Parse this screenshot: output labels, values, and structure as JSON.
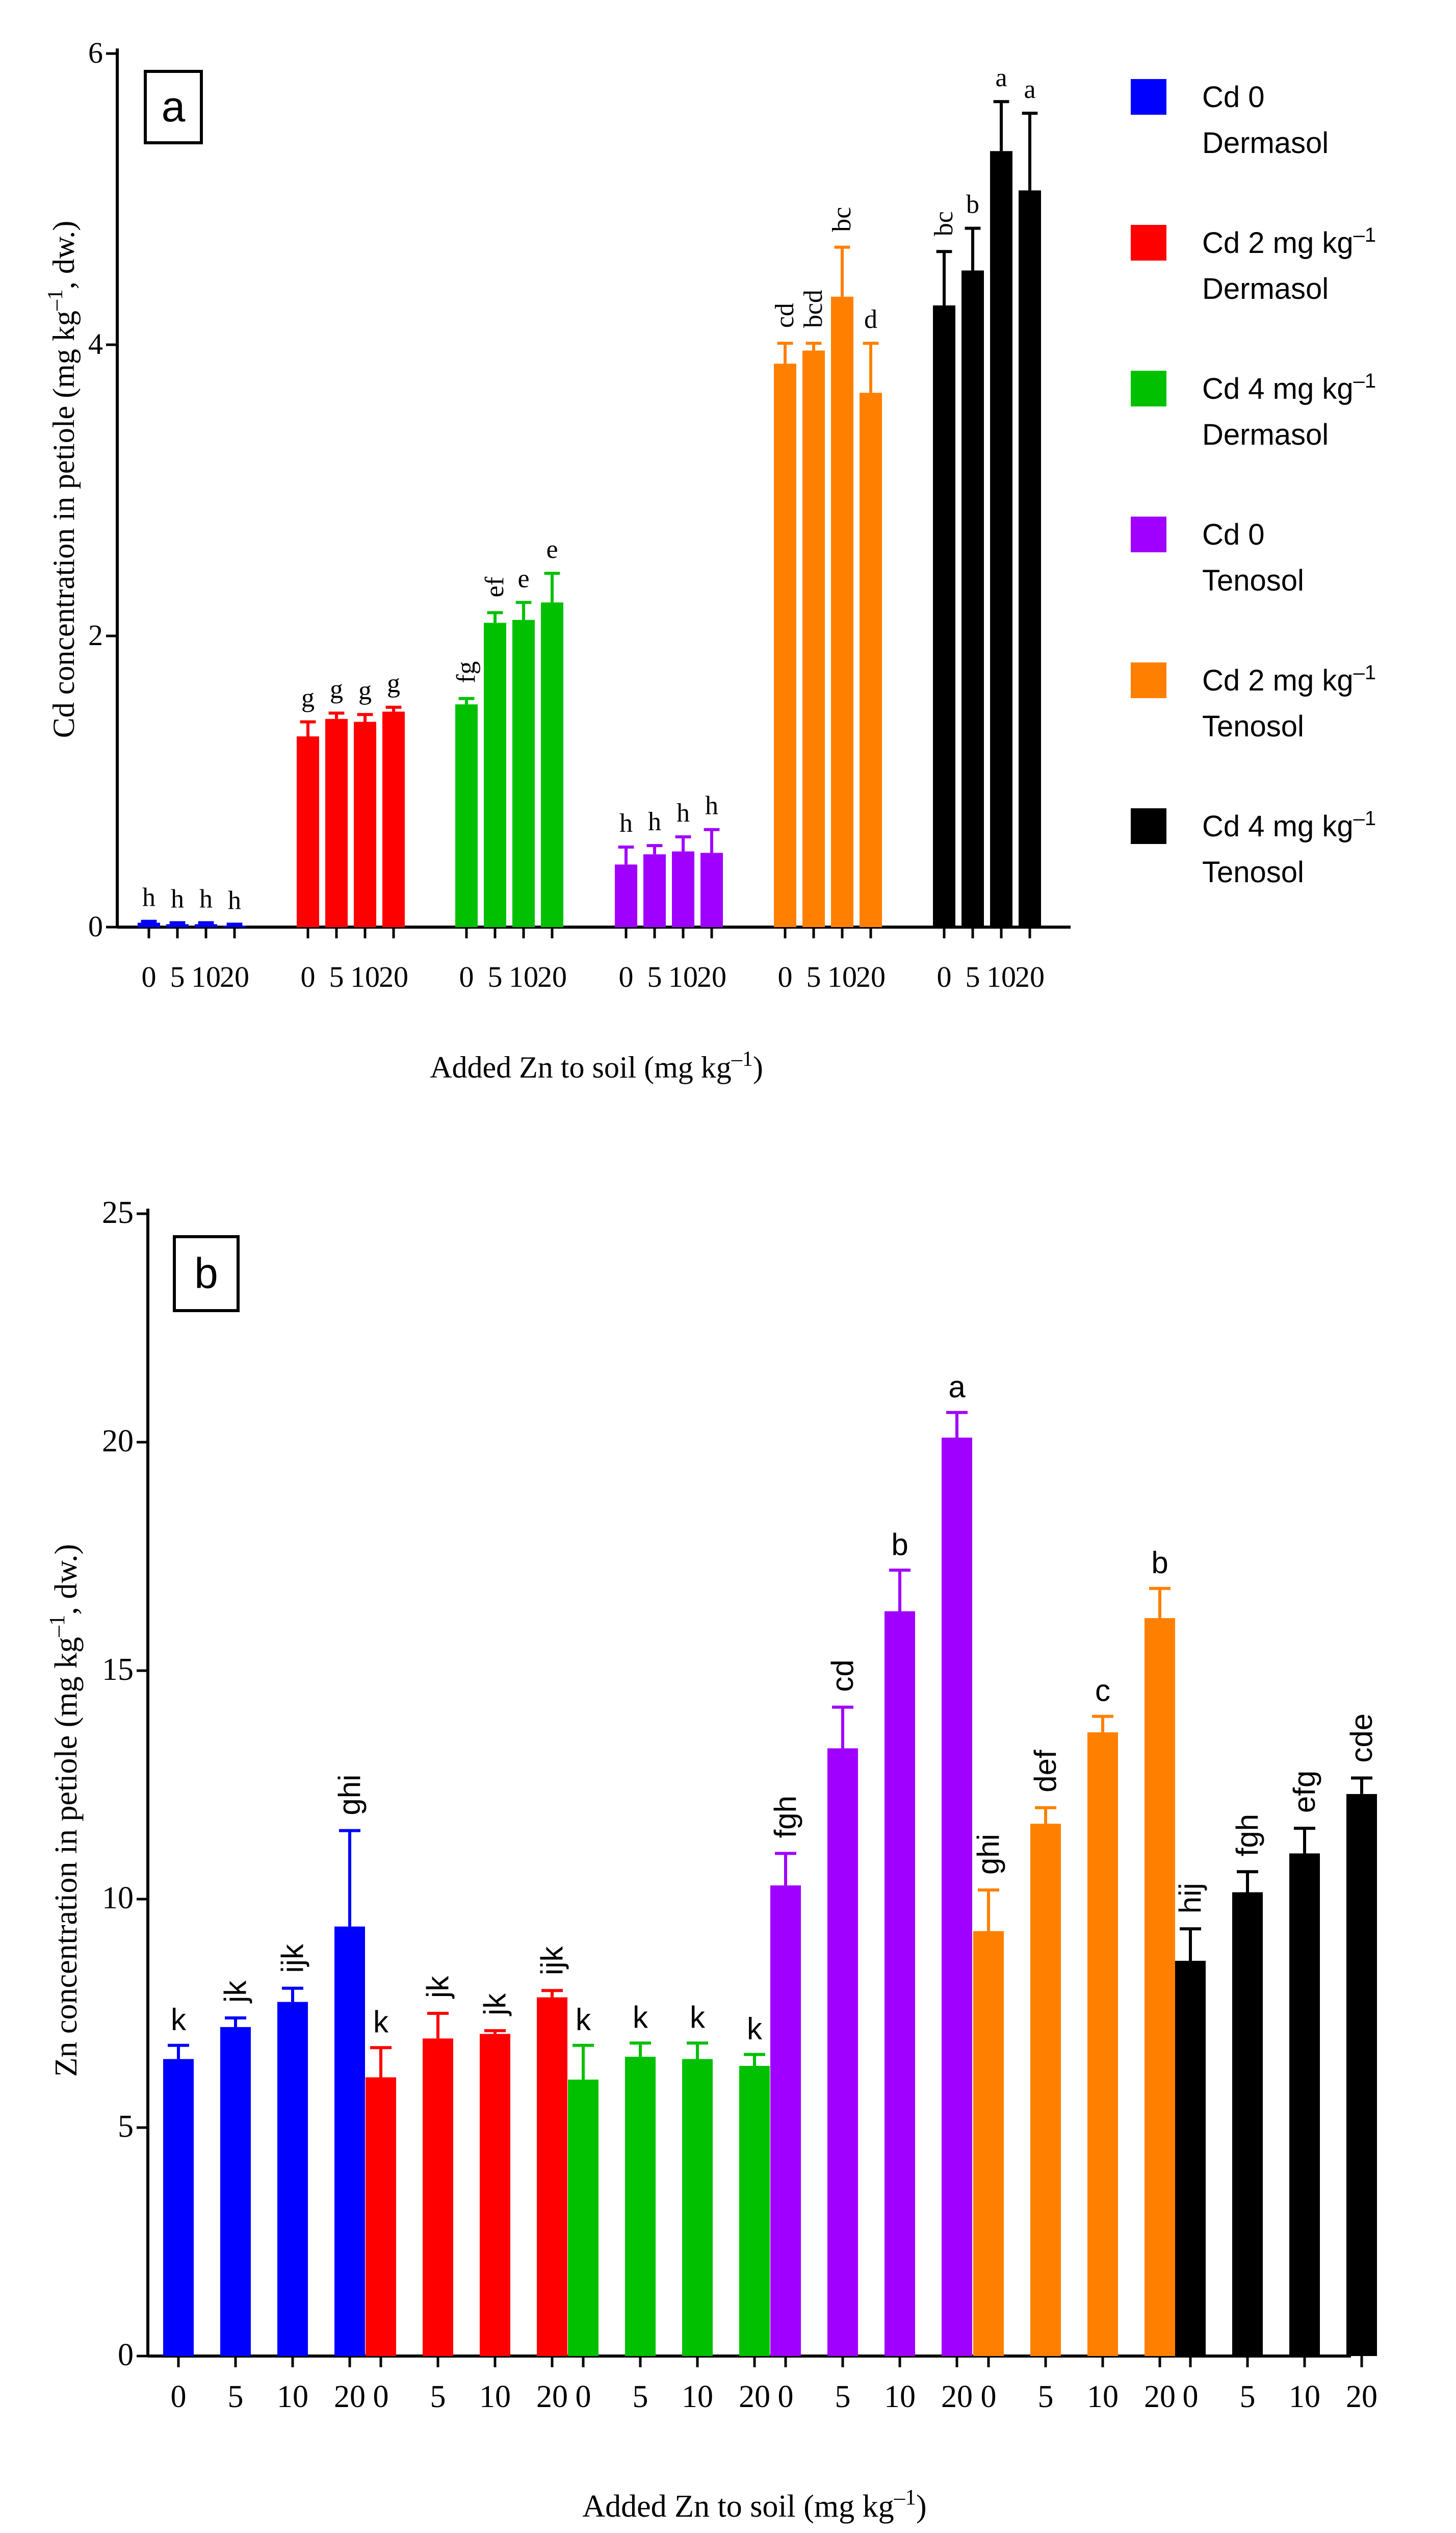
{
  "legend": [
    {
      "line1": "Cd 0",
      "line2": "Dermasol",
      "color": "#0000ff"
    },
    {
      "line1": "Cd 2 mg kg",
      "sup": "–1",
      "line2": "Dermasol",
      "color": "#ff0000"
    },
    {
      "line1": "Cd 4 mg kg",
      "sup": "–1",
      "line2": "Dermasol",
      "color": "#00c000"
    },
    {
      "line1": "Cd 0",
      "line2": "Tenosol",
      "color": "#a000ff"
    },
    {
      "line1": "Cd 2 mg kg",
      "sup": "–1",
      "line2": "Tenosol",
      "color": "#ff8000"
    },
    {
      "line1": "Cd 4 mg kg",
      "sup": "–1",
      "line2": "Tenosol",
      "color": "#000000"
    }
  ],
  "chart_data": [
    {
      "type": "bar",
      "panel_label": "a",
      "ylabel": "Cd concentration in petiole (mg kg",
      "ylabel_sup": "–1",
      "ylabel_end": ", dw.)",
      "xlabel": "Added Zn to soil (mg kg",
      "xlabel_sup": "–1",
      "xlabel_end": ")",
      "ylim": [
        0,
        6
      ],
      "yticks": [
        "0",
        "2",
        "4",
        "6"
      ],
      "ytick_values": [
        0,
        2,
        4,
        6
      ],
      "categories": [
        "0",
        "5",
        "10",
        "20"
      ],
      "series": [
        {
          "name": "Cd 0 Dermasol",
          "values": [
            0.03,
            0.02,
            0.02,
            0.01
          ],
          "errors": [
            0.01,
            0.01,
            0.01,
            0.01
          ],
          "letters": [
            "h",
            "h",
            "h",
            "h"
          ]
        },
        {
          "name": "Cd 2 mg kg–1 Dermasol",
          "values": [
            1.31,
            1.43,
            1.41,
            1.48
          ],
          "errors": [
            0.1,
            0.04,
            0.05,
            0.03
          ],
          "letters": [
            "g",
            "g",
            "g",
            "g"
          ]
        },
        {
          "name": "Cd 4 mg kg–1 Dermasol",
          "values": [
            1.53,
            2.09,
            2.11,
            2.23
          ],
          "errors": [
            0.04,
            0.07,
            0.12,
            0.2
          ],
          "letters": [
            "fg",
            "ef",
            "e",
            "e"
          ]
        },
        {
          "name": "Cd 0 Tenosol",
          "values": [
            0.43,
            0.5,
            0.52,
            0.51
          ],
          "errors": [
            0.12,
            0.06,
            0.1,
            0.16
          ],
          "letters": [
            "h",
            "h",
            "h",
            "h"
          ]
        },
        {
          "name": "Cd 2 mg kg–1 Tenosol",
          "values": [
            3.87,
            3.96,
            4.33,
            3.67
          ],
          "errors": [
            0.14,
            0.05,
            0.34,
            0.34
          ],
          "letters": [
            "cd",
            "bcd",
            "bc",
            "d"
          ]
        },
        {
          "name": "Cd 4 mg kg–1 Tenosol",
          "values": [
            4.27,
            4.51,
            5.33,
            5.06
          ],
          "errors": [
            0.37,
            0.29,
            0.34,
            0.53
          ],
          "letters": [
            "bc",
            "b",
            "a",
            "a"
          ]
        }
      ]
    },
    {
      "type": "bar",
      "panel_label": "b",
      "ylabel": "Zn concentration in petiole (mg kg",
      "ylabel_sup": "–1",
      "ylabel_end": ", dw.)",
      "xlabel": "Added Zn to soil (mg kg",
      "xlabel_sup": "–1",
      "xlabel_end": ")",
      "ylim": [
        0,
        25
      ],
      "yticks": [
        "0",
        "5",
        "10",
        "15",
        "20",
        "25"
      ],
      "ytick_values": [
        0,
        5,
        10,
        15,
        20,
        25
      ],
      "categories": [
        "0",
        "5",
        "10",
        "20"
      ],
      "series": [
        {
          "name": "Cd 0 Dermasol",
          "values": [
            6.5,
            7.2,
            7.75,
            9.4
          ],
          "errors": [
            0.3,
            0.2,
            0.3,
            2.1
          ],
          "letters": [
            "k",
            "jk",
            "ijk",
            "ghi"
          ]
        },
        {
          "name": "Cd 2 mg kg–1 Dermasol",
          "values": [
            6.1,
            6.95,
            7.05,
            7.85
          ],
          "errors": [
            0.65,
            0.55,
            0.07,
            0.15
          ],
          "letters": [
            "k",
            "jk",
            "jk",
            "ijk"
          ]
        },
        {
          "name": "Cd 4 mg kg–1 Dermasol",
          "values": [
            6.05,
            6.55,
            6.5,
            6.35
          ],
          "errors": [
            0.75,
            0.3,
            0.35,
            0.25
          ],
          "letters": [
            "k",
            "k",
            "k",
            "k"
          ]
        },
        {
          "name": "Cd 0 Tenosol",
          "values": [
            10.3,
            13.3,
            16.3,
            20.1
          ],
          "errors": [
            0.7,
            0.9,
            0.9,
            0.55
          ],
          "letters": [
            "fgh",
            "cd",
            "b",
            "a"
          ]
        },
        {
          "name": "Cd 2 mg kg–1 Tenosol",
          "values": [
            9.3,
            11.65,
            13.65,
            16.15
          ],
          "errors": [
            0.9,
            0.35,
            0.35,
            0.65
          ],
          "letters": [
            "ghi",
            "def",
            "c",
            "b"
          ]
        },
        {
          "name": "Cd 4 mg kg–1 Tenosol",
          "values": [
            8.65,
            10.15,
            11.0,
            12.3
          ],
          "errors": [
            0.7,
            0.45,
            0.55,
            0.35
          ],
          "letters": [
            "hij",
            "fgh",
            "efg",
            "cde"
          ]
        }
      ]
    }
  ]
}
